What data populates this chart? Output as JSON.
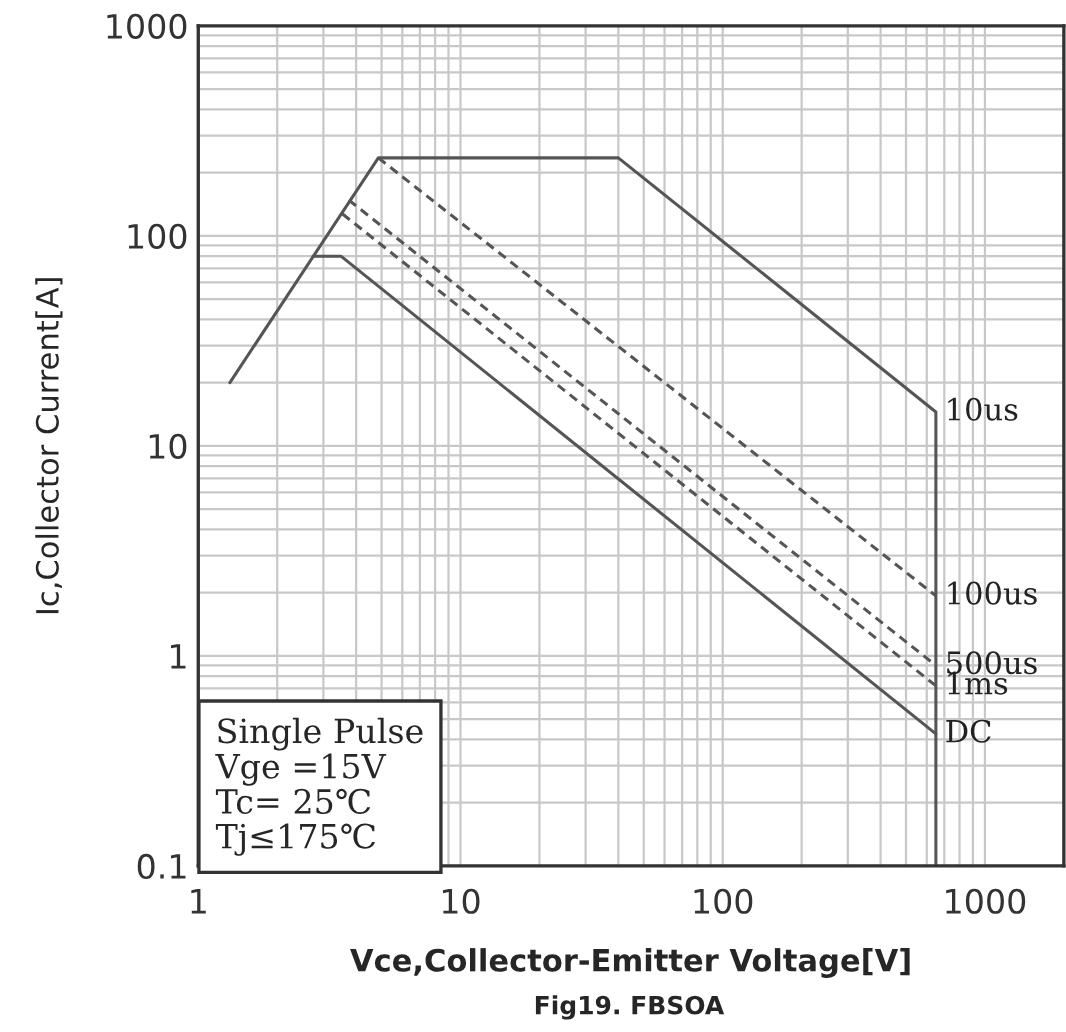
{
  "chart_data": {
    "type": "line",
    "xlabel": "Vce,Collector-Emitter Voltage[V]",
    "ylabel": "Ic,Collector Current[A]",
    "log": "xy",
    "grid": true,
    "xlim": [
      1,
      2000
    ],
    "xticks": [
      1,
      10,
      100,
      1000
    ],
    "ylim": [
      0.1,
      1000
    ],
    "yticks": [
      0.1,
      1,
      10,
      100,
      1000
    ],
    "series": [
      {
        "name": "10us",
        "color": "#555555",
        "line_style": "solid",
        "x": [
          1.32,
          4.86,
          40,
          650,
          650
        ],
        "values": [
          20,
          235,
          235,
          14.5,
          0.1
        ]
      },
      {
        "name": "100us",
        "color": "#555555",
        "line_style": "dashed",
        "x": [
          4.86,
          650
        ],
        "values": [
          235,
          1.93
        ]
      },
      {
        "name": "500us",
        "color": "#555555",
        "line_style": "dashed",
        "x": [
          3.75,
          650
        ],
        "values": [
          148,
          0.9
        ]
      },
      {
        "name": "1ms",
        "color": "#555555",
        "line_style": "dashed",
        "x": [
          3.55,
          650
        ],
        "values": [
          127,
          0.72
        ]
      },
      {
        "name": "DC",
        "color": "#555555",
        "line_style": "solid",
        "x": [
          2.74,
          3.5,
          650
        ],
        "values": [
          80,
          80,
          0.425
        ]
      }
    ],
    "annotations": [
      "Single Pulse\nVge =15V\nTc= 25℃\nTj≤175℃",
      "Fig19. FBSOA"
    ]
  }
}
